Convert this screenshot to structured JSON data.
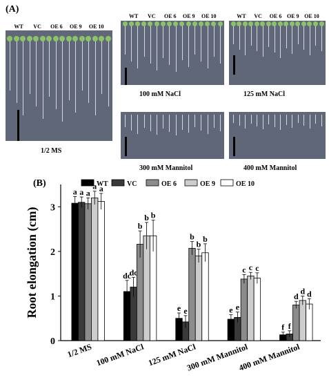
{
  "figure": {
    "panel_a_label": "(A)",
    "panel_b_label": "(B)",
    "genotypes": [
      "WT",
      "VC",
      "OE 6",
      "OE 9",
      "OE 10"
    ],
    "photos": [
      {
        "caption": "1/2 MS",
        "show_labels": true
      },
      {
        "caption": "100 mM NaCl",
        "show_labels": true
      },
      {
        "caption": "125 mM NaCl",
        "show_labels": true
      },
      {
        "caption": "300 mM Mannitol",
        "show_labels": false
      },
      {
        "caption": "400 mM Mannitol",
        "show_labels": false
      }
    ]
  },
  "chart_data": {
    "type": "bar",
    "ylabel": "Root elongation (cm)",
    "ylim": [
      0,
      3.5
    ],
    "yticks": [
      0,
      1,
      2,
      3
    ],
    "categories": [
      "1/2 MS",
      "100 mM NaCl",
      "125 mM NaCl",
      "300 mM Mannitol",
      "400 mM Mannitol"
    ],
    "legend_position": "top",
    "series": [
      {
        "name": "WT",
        "color": "#000000",
        "values": [
          3.08,
          1.1,
          0.5,
          0.48,
          0.13
        ],
        "errors": [
          0.15,
          0.25,
          0.12,
          0.1,
          0.06
        ],
        "letters": [
          "a",
          "dc",
          "e",
          "e",
          "f"
        ]
      },
      {
        "name": "VC",
        "color": "#3a3a3a",
        "values": [
          3.1,
          1.2,
          0.42,
          0.52,
          0.15
        ],
        "errors": [
          0.12,
          0.22,
          0.14,
          0.12,
          0.07
        ],
        "letters": [
          "a",
          "dc",
          "e",
          "e",
          "f"
        ]
      },
      {
        "name": "OE 6",
        "color": "#8c8c8c",
        "values": [
          3.07,
          2.16,
          2.07,
          1.38,
          0.8
        ],
        "errors": [
          0.13,
          0.3,
          0.15,
          0.1,
          0.08
        ],
        "letters": [
          "a",
          "b",
          "b",
          "c",
          "d"
        ]
      },
      {
        "name": "OE 9",
        "color": "#cdcdcd",
        "values": [
          3.2,
          2.35,
          1.9,
          1.45,
          0.9
        ],
        "errors": [
          0.15,
          0.3,
          0.15,
          0.08,
          0.1
        ],
        "letters": [
          "a",
          "b",
          "b",
          "c",
          "d"
        ]
      },
      {
        "name": "OE 10",
        "color": "#ffffff",
        "values": [
          3.12,
          2.35,
          1.97,
          1.4,
          0.82
        ],
        "errors": [
          0.18,
          0.35,
          0.2,
          0.12,
          0.12
        ],
        "letters": [
          "a",
          "b",
          "b",
          "c",
          "d"
        ]
      }
    ]
  }
}
